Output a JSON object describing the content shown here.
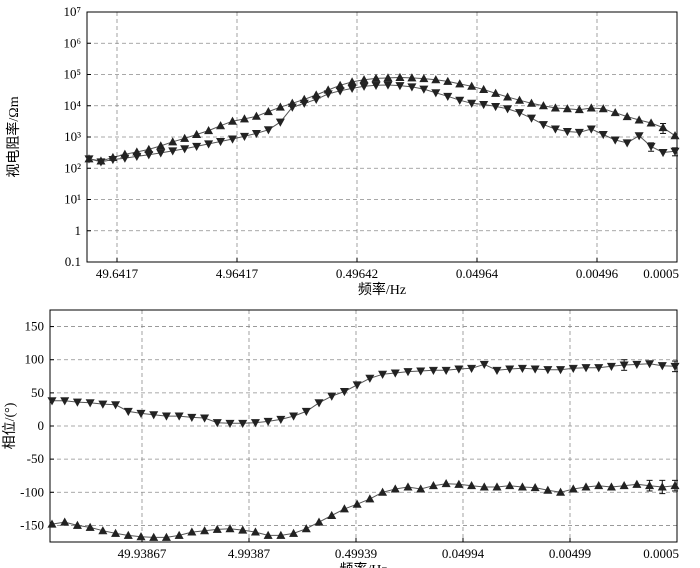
{
  "chart_data": [
    {
      "type": "line",
      "ylabel": "视电阻率/Ωm",
      "xlabel": "频率/Hz",
      "y_scale": "log",
      "ylim": [
        0.1,
        10000000
      ],
      "y_ticks": [
        "0.1",
        "1",
        "10¹",
        "10²",
        "10³",
        "10⁴",
        "10⁵",
        "10⁶",
        "10⁷"
      ],
      "x_ticks": [
        "49.6417",
        "4.96417",
        "0.49642",
        "0.04964",
        "0.00496",
        "0.0005"
      ],
      "grid": true,
      "series": [
        {
          "marker": "triangle-up",
          "x_index": [
            0,
            1,
            2,
            3,
            4,
            5,
            6,
            7,
            8,
            9,
            10,
            11,
            12,
            13,
            14,
            15,
            16,
            17,
            18,
            19,
            20,
            21,
            22,
            23,
            24,
            25,
            26,
            27,
            28,
            29,
            30,
            31,
            32,
            33,
            34,
            35,
            36,
            37,
            38,
            39,
            40,
            41,
            42,
            43,
            44,
            45,
            46,
            47,
            48,
            49
          ],
          "values": [
            200,
            170,
            220,
            280,
            330,
            400,
            520,
            700,
            900,
            1200,
            1600,
            2300,
            3200,
            3800,
            4600,
            6500,
            9000,
            12000,
            16000,
            22000,
            32000,
            45000,
            58000,
            68000,
            75000,
            78000,
            80000,
            78000,
            74000,
            68000,
            60000,
            50000,
            42000,
            33000,
            25000,
            19000,
            15000,
            12000,
            10000,
            8500,
            8000,
            7500,
            8500,
            8000,
            6000,
            4500,
            3500,
            2800,
            2000,
            1100
          ],
          "error": [
            0,
            0,
            0,
            0,
            0,
            0,
            0,
            0,
            0,
            0,
            0,
            0,
            0,
            0,
            0,
            0,
            0,
            0,
            0,
            0,
            0,
            0,
            0,
            0,
            0,
            0,
            0,
            0,
            0,
            0,
            0,
            0,
            0,
            0,
            0,
            0,
            0,
            0,
            0,
            0,
            0,
            0,
            0,
            0,
            0,
            0,
            0,
            0,
            700,
            0
          ]
        },
        {
          "marker": "triangle-down",
          "x_index": [
            0,
            1,
            2,
            3,
            4,
            5,
            6,
            7,
            8,
            9,
            10,
            11,
            12,
            13,
            14,
            15,
            16,
            17,
            18,
            19,
            20,
            21,
            22,
            23,
            24,
            25,
            26,
            27,
            28,
            29,
            30,
            31,
            32,
            33,
            34,
            35,
            36,
            37,
            38,
            39,
            40,
            41,
            42,
            43,
            44,
            45,
            46,
            47,
            48,
            49
          ],
          "values": [
            200,
            160,
            190,
            210,
            240,
            270,
            310,
            360,
            420,
            500,
            600,
            720,
            860,
            1050,
            1300,
            1700,
            3000,
            9000,
            12000,
            16000,
            24000,
            30000,
            36000,
            42000,
            45000,
            46000,
            44000,
            40000,
            34000,
            26000,
            20000,
            15000,
            12000,
            11000,
            9500,
            8000,
            6000,
            4000,
            2500,
            1800,
            1500,
            1400,
            1800,
            1200,
            800,
            650,
            1100,
            500,
            320,
            350
          ],
          "error": [
            0,
            0,
            0,
            0,
            0,
            0,
            0,
            0,
            0,
            0,
            0,
            0,
            0,
            0,
            0,
            0,
            0,
            0,
            0,
            0,
            0,
            0,
            0,
            0,
            0,
            0,
            0,
            0,
            0,
            0,
            0,
            0,
            0,
            0,
            0,
            0,
            0,
            0,
            0,
            0,
            0,
            0,
            0,
            0,
            0,
            0,
            0,
            150,
            0,
            100
          ]
        }
      ]
    },
    {
      "type": "line",
      "ylabel": "相位/(°)",
      "xlabel": "频率/Hz",
      "ylim": [
        -175,
        175
      ],
      "y_ticks": [
        "-150",
        "-100",
        "-50",
        "0",
        "50",
        "100",
        "150"
      ],
      "x_ticks": [
        "49.93867",
        "4.99387",
        "0.49939",
        "0.04994",
        "0.00499",
        "0.0005"
      ],
      "grid": true,
      "series": [
        {
          "marker": "triangle-down",
          "x_index": [
            0,
            1,
            2,
            3,
            4,
            5,
            6,
            7,
            8,
            9,
            10,
            11,
            12,
            13,
            14,
            15,
            16,
            17,
            18,
            19,
            20,
            21,
            22,
            23,
            24,
            25,
            26,
            27,
            28,
            29,
            30,
            31,
            32,
            33,
            34,
            35,
            36,
            37,
            38,
            39,
            40,
            41,
            42,
            43,
            44,
            45,
            46,
            47,
            48,
            49
          ],
          "values": [
            38,
            38,
            36,
            35,
            33,
            32,
            22,
            19,
            17,
            15,
            15,
            13,
            12,
            5,
            4,
            4,
            5,
            7,
            10,
            15,
            22,
            35,
            45,
            52,
            62,
            72,
            78,
            80,
            82,
            83,
            84,
            84,
            86,
            87,
            93,
            84,
            86,
            87,
            86,
            85,
            85,
            87,
            88,
            88,
            90,
            92,
            93,
            94,
            91,
            90
          ],
          "error": [
            0,
            0,
            0,
            0,
            0,
            0,
            0,
            0,
            0,
            0,
            0,
            0,
            0,
            0,
            0,
            0,
            0,
            0,
            0,
            0,
            0,
            0,
            0,
            0,
            0,
            0,
            0,
            0,
            0,
            0,
            0,
            0,
            0,
            0,
            0,
            0,
            0,
            0,
            0,
            0,
            0,
            0,
            0,
            0,
            0,
            8,
            0,
            0,
            0,
            8
          ]
        },
        {
          "marker": "triangle-up",
          "x_index": [
            0,
            1,
            2,
            3,
            4,
            5,
            6,
            7,
            8,
            9,
            10,
            11,
            12,
            13,
            14,
            15,
            16,
            17,
            18,
            19,
            20,
            21,
            22,
            23,
            24,
            25,
            26,
            27,
            28,
            29,
            30,
            31,
            32,
            33,
            34,
            35,
            36,
            37,
            38,
            39,
            40,
            41,
            42,
            43,
            44,
            45,
            46,
            47,
            48,
            49
          ],
          "values": [
            -148,
            -145,
            -150,
            -153,
            -158,
            -162,
            -165,
            -167,
            -168,
            -168,
            -165,
            -160,
            -158,
            -156,
            -155,
            -157,
            -160,
            -165,
            -165,
            -162,
            -155,
            -145,
            -135,
            -125,
            -118,
            -110,
            -100,
            -95,
            -92,
            -95,
            -90,
            -87,
            -88,
            -90,
            -92,
            -92,
            -90,
            -92,
            -93,
            -97,
            -100,
            -95,
            -92,
            -90,
            -92,
            -90,
            -88,
            -90,
            -92,
            -90
          ],
          "error": [
            0,
            0,
            0,
            0,
            0,
            0,
            0,
            0,
            0,
            0,
            0,
            0,
            0,
            0,
            0,
            0,
            0,
            0,
            0,
            0,
            0,
            0,
            0,
            0,
            0,
            0,
            0,
            0,
            0,
            0,
            0,
            0,
            0,
            0,
            0,
            0,
            0,
            0,
            0,
            0,
            0,
            0,
            0,
            0,
            0,
            0,
            0,
            8,
            10,
            8
          ]
        }
      ]
    }
  ]
}
